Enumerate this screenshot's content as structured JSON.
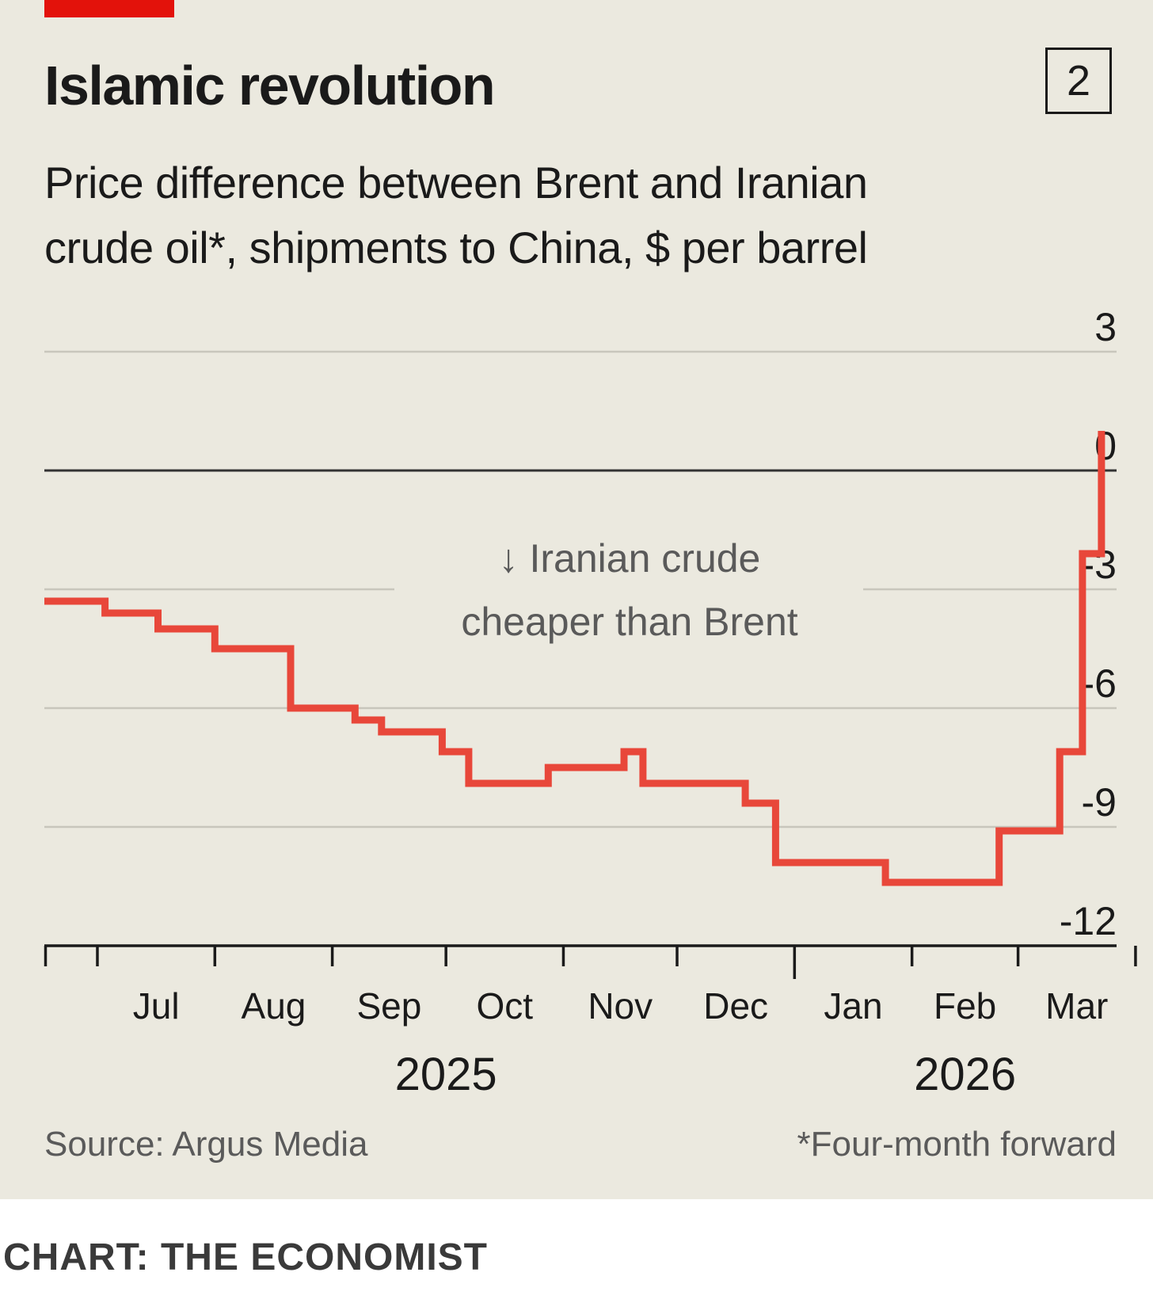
{
  "header": {
    "title": "Islamic revolution",
    "badge": "2",
    "subtitle_line1": "Price difference between Brent and Iranian",
    "subtitle_line2": "crude oil*, shipments to China, $ per barrel"
  },
  "colors": {
    "background": "#ebe9df",
    "accent_red": "#e3120b",
    "line": "#e8473a",
    "grid": "#c8c6bc",
    "zero_line": "#333333",
    "text_dark": "#1a1a1a",
    "text_muted": "#5a5a5a"
  },
  "chart_data": {
    "type": "line",
    "style": "step",
    "title": "Islamic revolution",
    "subtitle": "Price difference between Brent and Iranian crude oil*, shipments to China, $ per barrel",
    "ylabel": "$ per barrel",
    "ylim": [
      -12,
      3
    ],
    "yticks": [
      "3",
      "0",
      "-3",
      "-6",
      "-9",
      "-12"
    ],
    "ytick_values": [
      3,
      0,
      -3,
      -6,
      -9,
      -12
    ],
    "grid": true,
    "x_start": "2025-06-17",
    "x_end": "2026-03-27",
    "month_labels": [
      "Jul",
      "Aug",
      "Sep",
      "Oct",
      "Nov",
      "Dec",
      "Jan",
      "Feb",
      "Mar"
    ],
    "month_starts": [
      "2025-07-01",
      "2025-08-01",
      "2025-09-01",
      "2025-10-01",
      "2025-11-01",
      "2025-12-01",
      "2026-01-01",
      "2026-02-01",
      "2026-03-01",
      "2026-04-01"
    ],
    "year_labels": [
      {
        "label": "2025",
        "date": "2025-10-01"
      },
      {
        "label": "2026",
        "date": "2026-02-15"
      }
    ],
    "annotation": {
      "line1": "↓ Iranian crude",
      "line2": "cheaper than Brent",
      "date": "2025-11-15",
      "value": -4.2
    },
    "series": [
      {
        "name": "Brent minus Iranian crude spread",
        "points": [
          {
            "date": "2025-06-17",
            "value": -3.3
          },
          {
            "date": "2025-07-03",
            "value": -3.6
          },
          {
            "date": "2025-07-17",
            "value": -4.0
          },
          {
            "date": "2025-08-01",
            "value": -4.5
          },
          {
            "date": "2025-08-21",
            "value": -6.0
          },
          {
            "date": "2025-09-07",
            "value": -6.3
          },
          {
            "date": "2025-09-14",
            "value": -6.6
          },
          {
            "date": "2025-09-30",
            "value": -7.1
          },
          {
            "date": "2025-10-07",
            "value": -7.9
          },
          {
            "date": "2025-10-28",
            "value": -7.5
          },
          {
            "date": "2025-11-17",
            "value": -7.1
          },
          {
            "date": "2025-11-22",
            "value": -7.9
          },
          {
            "date": "2025-12-19",
            "value": -8.4
          },
          {
            "date": "2025-12-27",
            "value": -9.9
          },
          {
            "date": "2026-01-25",
            "value": -10.4
          },
          {
            "date": "2026-02-24",
            "value": -9.1
          },
          {
            "date": "2026-03-12",
            "value": -7.1
          },
          {
            "date": "2026-03-18",
            "value": -2.1
          },
          {
            "date": "2026-03-23",
            "value": 1.0
          }
        ]
      }
    ]
  },
  "footer": {
    "source": "Source: Argus Media",
    "footnote": "*Four-month forward",
    "credit": "CHART: THE ECONOMIST"
  }
}
